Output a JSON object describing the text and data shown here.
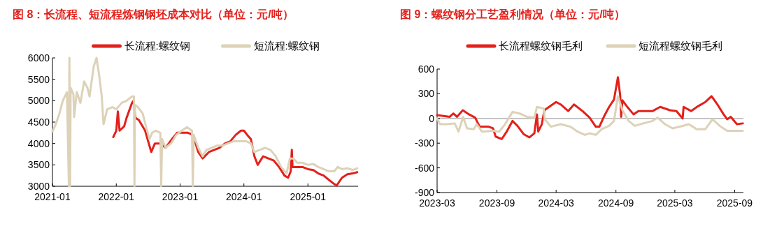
{
  "chart_data": [
    {
      "type": "line",
      "title": "图 8：长流程、短流程炼钢钢坯成本对比（单位：元/吨）",
      "legend": "top",
      "xlim": [
        "2021-01-01",
        "2025-10-15"
      ],
      "ylim": [
        3000,
        6000
      ],
      "xticks": [
        "2021-01",
        "2022-01",
        "2023-01",
        "2024-01",
        "2025-01"
      ],
      "yticks": [
        3000,
        3500,
        4000,
        4500,
        5000,
        5500,
        6000
      ],
      "series": [
        {
          "name": "长流程:螺纹钢",
          "color": "#e3201b",
          "x": [
            "2021-12-15",
            "2022-01-01",
            "2022-01-10",
            "2022-01-20",
            "2022-02-15",
            "2022-03-01",
            "2022-04-01",
            "2022-04-10",
            "2022-04-20",
            "2022-05-10",
            "2022-06-15",
            "2022-07-20",
            "2022-08-10",
            "2022-09-10",
            "2022-10-10",
            "2022-11-15",
            "2022-12-15",
            "2023-01-15",
            "2023-02-15",
            "2023-03-15",
            "2023-04-15",
            "2023-05-10",
            "2023-06-15",
            "2023-07-15",
            "2023-08-15",
            "2023-09-15",
            "2023-10-15",
            "2023-11-15",
            "2023-12-15",
            "2024-01-01",
            "2024-01-20",
            "2024-02-10",
            "2024-03-01",
            "2024-03-20",
            "2024-04-20",
            "2024-05-20",
            "2024-06-20",
            "2024-07-20",
            "2024-08-20",
            "2024-09-10",
            "2024-09-25",
            "2024-10-01",
            "2024-10-05",
            "2024-11-01",
            "2024-12-01",
            "2025-01-01",
            "2025-02-01",
            "2025-03-01",
            "2025-04-01",
            "2025-05-01",
            "2025-06-01",
            "2025-06-15",
            "2025-07-15",
            "2025-08-15",
            "2025-09-15",
            "2025-10-10"
          ],
          "values": [
            4150,
            4300,
            4750,
            4300,
            4400,
            4600,
            4950,
            5000,
            4600,
            4550,
            4300,
            3800,
            4000,
            4000,
            3900,
            4100,
            4250,
            4250,
            4250,
            4200,
            3800,
            3650,
            3800,
            3850,
            3900,
            4000,
            4050,
            4200,
            4300,
            4300,
            4200,
            4100,
            3700,
            3500,
            3700,
            3650,
            3600,
            3450,
            3250,
            3200,
            3350,
            3850,
            3450,
            3450,
            3450,
            3400,
            3380,
            3300,
            3250,
            3150,
            3050,
            3020,
            3200,
            3280,
            3300,
            3330
          ]
        },
        {
          "name": "短流程:螺纹钢",
          "color": "#ddd2b8",
          "x": [
            "2021-01-01",
            "2021-01-20",
            "2021-02-10",
            "2021-03-01",
            "2021-03-25",
            "2021-04-05",
            "2021-04-08",
            "2021-04-12",
            "2021-04-15",
            "2021-05-01",
            "2021-05-05",
            "2021-05-20",
            "2021-06-10",
            "2021-07-01",
            "2021-07-20",
            "2021-08-01",
            "2021-08-25",
            "2021-09-10",
            "2021-09-25",
            "2021-10-10",
            "2021-10-20",
            "2021-11-10",
            "2021-12-10",
            "2022-01-01",
            "2022-02-01",
            "2022-03-01",
            "2022-04-01",
            "2022-04-12",
            "2022-04-15",
            "2022-04-18",
            "2022-05-05",
            "2022-06-01",
            "2022-06-20",
            "2022-07-10",
            "2022-07-25",
            "2022-08-15",
            "2022-09-10",
            "2022-09-15",
            "2022-09-20",
            "2022-10-10",
            "2022-11-10",
            "2022-12-10",
            "2023-01-10",
            "2023-02-10",
            "2023-03-10",
            "2023-03-15",
            "2023-03-20",
            "2023-04-15",
            "2023-05-10",
            "2023-06-01",
            "2023-07-01",
            "2023-08-01",
            "2023-09-01",
            "2023-10-01",
            "2023-11-01",
            "2023-12-01",
            "2024-01-15",
            "2024-02-10",
            "2024-03-01",
            "2024-04-01",
            "2024-05-01",
            "2024-06-01",
            "2024-07-01",
            "2024-08-01",
            "2024-09-01",
            "2024-09-20",
            "2024-10-10",
            "2024-11-01",
            "2024-12-01",
            "2025-01-01",
            "2025-02-01",
            "2025-03-01",
            "2025-04-01",
            "2025-05-01",
            "2025-06-01",
            "2025-06-20",
            "2025-07-15",
            "2025-08-15",
            "2025-09-15",
            "2025-10-10"
          ],
          "values": [
            4280,
            4450,
            4700,
            5000,
            5200,
            3000,
            6000,
            3000,
            5300,
            5150,
            4620,
            5200,
            4950,
            5450,
            5300,
            5100,
            5800,
            6000,
            5600,
            5100,
            4450,
            4800,
            4850,
            4800,
            4950,
            5000,
            5100,
            5100,
            3000,
            4900,
            4850,
            4700,
            4400,
            4100,
            4250,
            4300,
            4250,
            3000,
            4100,
            3900,
            4000,
            4200,
            4300,
            4380,
            4300,
            3000,
            4200,
            3900,
            3700,
            3850,
            3900,
            3950,
            3950,
            4000,
            4050,
            4050,
            4050,
            4000,
            3800,
            3850,
            3900,
            3850,
            3700,
            3450,
            3300,
            3650,
            3650,
            3550,
            3550,
            3500,
            3520,
            3450,
            3400,
            3350,
            3350,
            3450,
            3400,
            3420,
            3380,
            3420
          ]
        }
      ]
    },
    {
      "type": "line",
      "title": "图 9：螺纹钢分工艺盈利情况（单位：元/吨）",
      "legend": "top",
      "xlim": [
        "2023-03-01",
        "2025-09-28"
      ],
      "ylim": [
        -900,
        600
      ],
      "xticks": [
        "2023-03",
        "2023-09",
        "2024-03",
        "2024-09",
        "2025-03",
        "2025-09"
      ],
      "yticks": [
        -900,
        -600,
        -300,
        0,
        300,
        600
      ],
      "ref_lines": [
        {
          "axis": "y",
          "value": 0,
          "color": "#a6a6a6"
        }
      ],
      "series": [
        {
          "name": "长流程螺纹钢毛利",
          "color": "#e3201b",
          "x": [
            "2023-03-01",
            "2023-04-09",
            "2023-04-20",
            "2023-05-01",
            "2023-05-19",
            "2023-06-07",
            "2023-06-26",
            "2023-07-10",
            "2023-08-06",
            "2023-08-20",
            "2023-08-28",
            "2023-09-16",
            "2023-10-01",
            "2023-10-19",
            "2023-11-03",
            "2023-11-22",
            "2023-12-10",
            "2023-12-25",
            "2024-01-02",
            "2024-01-06",
            "2024-01-17",
            "2024-01-25",
            "2024-02-12",
            "2024-03-01",
            "2024-03-15",
            "2024-04-07",
            "2024-04-25",
            "2024-05-21",
            "2024-06-12",
            "2024-07-01",
            "2024-07-12",
            "2024-07-27",
            "2024-08-11",
            "2024-08-26",
            "2024-09-07",
            "2024-09-14",
            "2024-09-17",
            "2024-09-21",
            "2024-10-06",
            "2024-10-25",
            "2024-11-09",
            "2024-12-01",
            "2024-12-23",
            "2025-01-15",
            "2025-02-14",
            "2025-03-06",
            "2025-03-25",
            "2025-03-28",
            "2025-04-20",
            "2025-05-12",
            "2025-06-03",
            "2025-06-22",
            "2025-07-10",
            "2025-07-29",
            "2025-08-09",
            "2025-08-20",
            "2025-09-08",
            "2025-09-26"
          ],
          "values": [
            40,
            20,
            60,
            20,
            100,
            50,
            10,
            -100,
            -100,
            -120,
            -220,
            -250,
            -160,
            -30,
            -90,
            -190,
            -230,
            -180,
            50,
            -160,
            -70,
            100,
            150,
            200,
            170,
            90,
            170,
            90,
            10,
            -100,
            -100,
            30,
            140,
            230,
            500,
            280,
            20,
            220,
            140,
            50,
            90,
            90,
            90,
            140,
            100,
            90,
            0,
            140,
            90,
            150,
            200,
            270,
            170,
            50,
            -10,
            20,
            -70,
            -60
          ]
        },
        {
          "name": "短流程螺纹钢毛利",
          "color": "#ddd2b8",
          "x": [
            "2023-03-01",
            "2023-03-10",
            "2023-04-01",
            "2023-04-24",
            "2023-05-06",
            "2023-05-20",
            "2023-06-01",
            "2023-06-22",
            "2023-07-01",
            "2023-07-17",
            "2023-08-20",
            "2023-09-08",
            "2023-09-26",
            "2023-10-19",
            "2023-11-10",
            "2023-12-02",
            "2023-12-25",
            "2024-01-02",
            "2024-01-23",
            "2024-01-26",
            "2024-02-14",
            "2024-03-15",
            "2024-04-14",
            "2024-05-06",
            "2024-05-29",
            "2024-06-12",
            "2024-07-01",
            "2024-07-19",
            "2024-08-11",
            "2024-08-26",
            "2024-09-07",
            "2024-09-21",
            "2024-10-10",
            "2024-10-29",
            "2024-11-24",
            "2024-12-23",
            "2025-01-07",
            "2025-01-30",
            "2025-02-22",
            "2025-03-25",
            "2025-04-13",
            "2025-05-07",
            "2025-06-03",
            "2025-06-25",
            "2025-07-17",
            "2025-08-09",
            "2025-09-08",
            "2025-09-26"
          ],
          "values": [
            0,
            -70,
            -70,
            -60,
            -160,
            20,
            -120,
            -130,
            -70,
            -160,
            -150,
            -160,
            -70,
            80,
            60,
            20,
            10,
            140,
            120,
            -10,
            -100,
            -70,
            -100,
            -160,
            -200,
            -180,
            -200,
            -130,
            -90,
            -30,
            270,
            100,
            -30,
            -90,
            -60,
            -30,
            10,
            -70,
            -120,
            -90,
            -70,
            -130,
            -130,
            -10,
            -90,
            -150,
            -150,
            -150
          ]
        }
      ]
    }
  ]
}
